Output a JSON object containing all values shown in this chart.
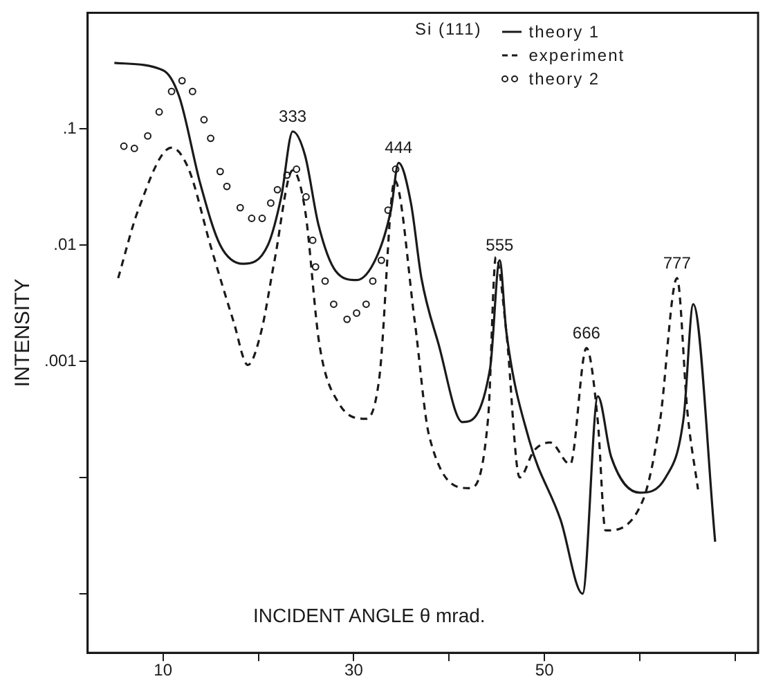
{
  "chart_data": {
    "type": "line",
    "xlabel": "INCIDENT ANGLE θ mrad.",
    "ylabel": "INTENSITY",
    "legend_title": "Si (111)",
    "legend": "top right",
    "log": "y",
    "grid": false,
    "xlim": [
      2.1,
      72.4
    ],
    "xticks": [
      10,
      {
        "value": 20,
        "label": null
      },
      30,
      {
        "value": 40,
        "label": null
      },
      50,
      {
        "value": 60,
        "label": null
      },
      {
        "value": 70,
        "label": null
      }
    ],
    "ylim": [
      3.1e-06,
      1
    ],
    "yticks": [
      {
        "value": 0.1,
        "label": ".1"
      },
      {
        "value": 0.01,
        "label": ".01"
      },
      {
        "value": 0.001,
        "label": ".001"
      },
      {
        "value": 0.0001,
        "label": null
      },
      {
        "value": 1e-05,
        "label": null
      }
    ],
    "series": [
      {
        "name": "theory 1",
        "line_style": "solid",
        "color": "#1a1a1a",
        "x": [
          4.9,
          10,
          11.7,
          13.9,
          16,
          18.4,
          21,
          22.4,
          23.6,
          24.9,
          26.3,
          28.1,
          30.3,
          32.4,
          33.9,
          34.7,
          36,
          37.1,
          38.9,
          41.4,
          44.3,
          45.3,
          46,
          48.4,
          51.7,
          54,
          55.6,
          57,
          60,
          62.7,
          64.6,
          65.6,
          67.9
        ],
        "values": [
          0.37,
          0.32,
          0.19,
          0.034,
          0.01,
          0.0069,
          0.01,
          0.026,
          0.095,
          0.059,
          0.015,
          0.006,
          0.005,
          0.0079,
          0.02,
          0.051,
          0.023,
          0.0052,
          0.0014,
          0.0003,
          0.00087,
          0.0074,
          0.0018,
          0.00021,
          4.3e-05,
          1e-05,
          0.0005,
          0.00015,
          7.4e-05,
          0.0001,
          0.00033,
          0.0031,
          2.8e-05
        ]
      },
      {
        "name": "experiment",
        "line_style": "dashed",
        "color": "#1a1a1a",
        "x": [
          5.3,
          7.4,
          10.9,
          12.7,
          15,
          17.4,
          18.9,
          20.3,
          21.7,
          23.6,
          24.9,
          26.4,
          28.4,
          31.3,
          32.7,
          34.3,
          36.4,
          37.9,
          42.1,
          44.1,
          44.9,
          46,
          47.4,
          48.9,
          50.6,
          52.7,
          54.4,
          55.6,
          56.4,
          60.3,
          62.1,
          63.9,
          65,
          66.1
        ],
        "values": [
          0.0052,
          0.02,
          0.069,
          0.045,
          0.0098,
          0.0022,
          0.00093,
          0.0018,
          0.0074,
          0.044,
          0.02,
          0.0014,
          0.00044,
          0.00032,
          0.00074,
          0.036,
          0.0022,
          0.00023,
          8.1e-05,
          0.00033,
          0.0079,
          0.0018,
          0.0001,
          0.00017,
          0.0002,
          0.00013,
          0.0013,
          0.0003,
          3.5e-05,
          6.3e-05,
          0.0003,
          0.0052,
          0.00036,
          7.9e-05
        ]
      },
      {
        "name": "theory 2",
        "type": "scatter",
        "marker": "circle",
        "color": "#1a1a1a",
        "x": [
          5.9,
          7,
          8.4,
          9.6,
          10.9,
          12,
          13.1,
          14.3,
          15,
          16,
          16.7,
          18.1,
          19.3,
          20.4,
          21.3,
          22,
          23,
          24,
          25,
          25.7,
          26,
          27,
          27.9,
          29.3,
          30.3,
          31.3,
          32,
          32.9,
          33.6,
          34.4
        ],
        "values": [
          0.071,
          0.068,
          0.087,
          0.14,
          0.21,
          0.26,
          0.21,
          0.12,
          0.083,
          0.043,
          0.032,
          0.021,
          0.017,
          0.017,
          0.023,
          0.03,
          0.04,
          0.045,
          0.026,
          0.011,
          0.0065,
          0.0049,
          0.0031,
          0.0023,
          0.0026,
          0.0031,
          0.0049,
          0.0074,
          0.02,
          0.045
        ]
      }
    ],
    "annotations": [
      {
        "text": "333",
        "x": 23.6,
        "y": 0.095
      },
      {
        "text": "444",
        "x": 34.7,
        "y": 0.051
      },
      {
        "text": "555",
        "x": 45.3,
        "y": 0.0074
      },
      {
        "text": "666",
        "x": 54.4,
        "y": 0.0013
      },
      {
        "text": "777",
        "x": 63.9,
        "y": 0.0052
      }
    ]
  }
}
